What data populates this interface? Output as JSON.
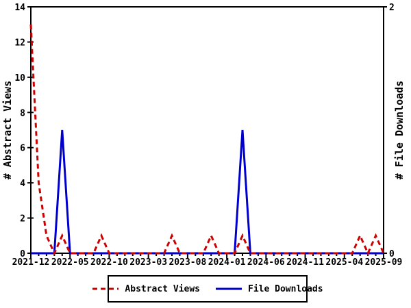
{
  "chart_data": {
    "type": "line",
    "title": "",
    "ylabel_left": "# Abstract Views",
    "ylabel_right": "# File Downloads",
    "axis_color": "#000000",
    "grid": false,
    "legend_position": "bottom-center",
    "x": [
      "2021-12",
      "2022-01",
      "2022-02",
      "2022-03",
      "2022-04",
      "2022-05",
      "2022-06",
      "2022-07",
      "2022-08",
      "2022-09",
      "2022-10",
      "2022-11",
      "2022-12",
      "2023-01",
      "2023-02",
      "2023-03",
      "2023-04",
      "2023-05",
      "2023-06",
      "2023-07",
      "2023-08",
      "2023-09",
      "2023-10",
      "2023-11",
      "2023-12",
      "2024-01",
      "2024-02",
      "2024-03",
      "2024-04",
      "2024-05",
      "2024-06",
      "2024-07",
      "2024-08",
      "2024-09",
      "2024-10",
      "2024-11",
      "2024-12",
      "2025-01",
      "2025-02",
      "2025-03",
      "2025-04",
      "2025-05",
      "2025-06",
      "2025-07",
      "2025-08",
      "2025-09"
    ],
    "x_tick_labels": [
      "2021-12",
      "2022-05",
      "2022-10",
      "2023-03",
      "2023-08",
      "2024-01",
      "2024-06",
      "2024-11",
      "2025-04",
      "2025-09"
    ],
    "x_tick_step": 5,
    "y_left": {
      "min": 0,
      "max": 14,
      "ticks": [
        0,
        2,
        4,
        6,
        8,
        10,
        12,
        14
      ]
    },
    "y_right": {
      "min": 0,
      "max": 2,
      "ticks": [
        0,
        2
      ]
    },
    "series": [
      {
        "name": "Abstract Views",
        "axis": "left",
        "style": "dashed",
        "color": "#cc0000",
        "values": [
          13,
          4,
          1,
          0,
          1,
          0,
          0,
          0,
          0,
          1,
          0,
          0,
          0,
          0,
          0,
          0,
          0,
          0,
          1,
          0,
          0,
          0,
          0,
          1,
          0,
          0,
          0,
          1,
          0,
          0,
          0,
          0,
          0,
          0,
          0,
          0,
          0,
          0,
          0,
          0,
          0,
          0,
          1,
          0,
          1,
          0
        ]
      },
      {
        "name": "File Downloads",
        "axis": "right",
        "style": "solid",
        "color": "#0000cc",
        "values": [
          0,
          0,
          0,
          0,
          1,
          0,
          0,
          0,
          0,
          0,
          0,
          0,
          0,
          0,
          0,
          0,
          0,
          0,
          0,
          0,
          0,
          0,
          0,
          0,
          0,
          0,
          0,
          1,
          0,
          0,
          0,
          0,
          0,
          0,
          0,
          0,
          0,
          0,
          0,
          0,
          0,
          0,
          0,
          0,
          0,
          0
        ]
      }
    ]
  }
}
